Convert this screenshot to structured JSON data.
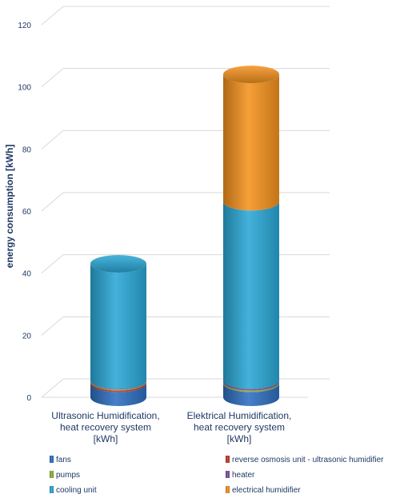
{
  "chart_data": {
    "type": "bar",
    "stacked": true,
    "style": "3d-cylinder",
    "ylabel": "energy consumption [kWh]",
    "ylim": [
      0,
      120
    ],
    "yticks": [
      0,
      20,
      40,
      60,
      80,
      100,
      120
    ],
    "grid": true,
    "legend_position": "bottom",
    "categories": [
      [
        "Ultrasonic Humidification,",
        "heat recovery system",
        "[kWh]"
      ],
      [
        "Elektrical Humidification,",
        "heat recovery system",
        "[kWh]"
      ]
    ],
    "series": [
      {
        "name": "fans",
        "color": "#2e6fc0",
        "values": [
          4.5,
          4.5
        ]
      },
      {
        "name": "reverse osmosis unit - ultrasonic humidifier",
        "color": "#c0392b",
        "values": [
          0.5,
          0
        ]
      },
      {
        "name": "pumps",
        "color": "#8db03b",
        "values": [
          0.3,
          0.5
        ]
      },
      {
        "name": "heater",
        "color": "#7a4fa0",
        "values": [
          0.2,
          0.5
        ]
      },
      {
        "name": "cooling unit",
        "color": "#2aa8d6",
        "values": [
          37.5,
          57.5
        ]
      },
      {
        "name": "electrical humidifier",
        "color": "#f5921e",
        "values": [
          0,
          41
        ]
      }
    ],
    "legend_order": [
      "fans",
      "reverse osmosis unit - ultrasonic humidifier",
      "pumps",
      "heater",
      "cooling unit",
      "electrical humidifier"
    ]
  }
}
